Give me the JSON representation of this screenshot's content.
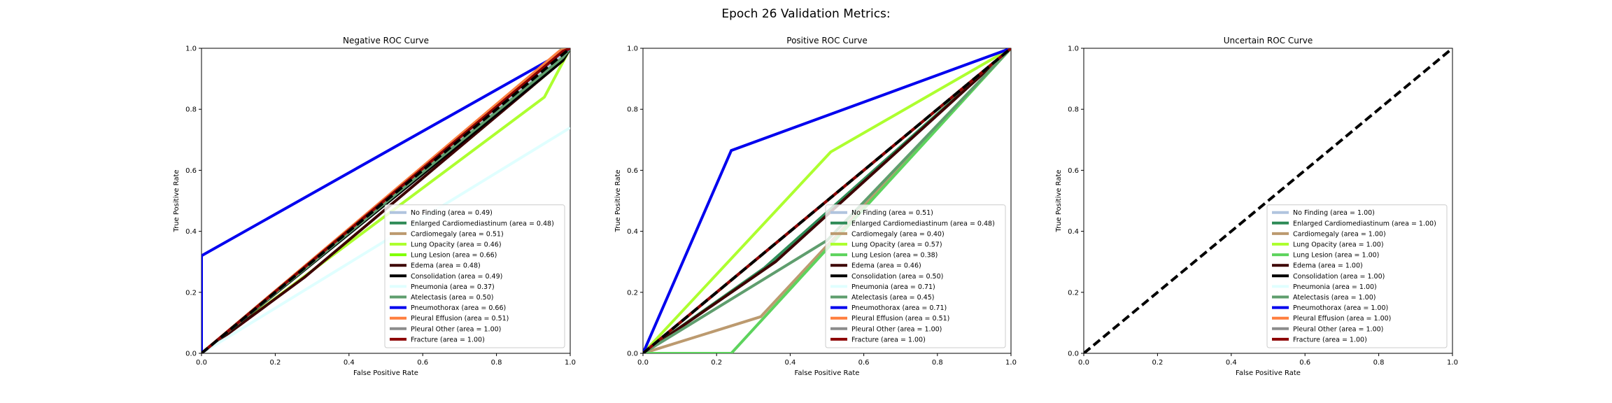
{
  "figure_title": "Epoch 26 Validation Metrics:",
  "chart_data": [
    {
      "type": "line",
      "title": "Negative ROC Curve",
      "xlabel": "False Positive Rate",
      "ylabel": "True Positive Rate",
      "xlim": [
        0,
        1
      ],
      "ylim": [
        0,
        1
      ],
      "xticks": [
        "0.0",
        "0.2",
        "0.4",
        "0.6",
        "0.8",
        "1.0"
      ],
      "yticks": [
        "0.0",
        "0.2",
        "0.4",
        "0.6",
        "0.8",
        "1.0"
      ],
      "grid": false,
      "legend": "bottom-right",
      "diagonal": {
        "x": [
          0,
          1
        ],
        "y": [
          0,
          1
        ],
        "style": "dashed",
        "color": "#000000"
      },
      "series": [
        {
          "name": "No Finding (area = 0.49)",
          "color": "#b0c4de",
          "x": [
            0,
            0.97,
            1
          ],
          "y": [
            0,
            0.97,
            1
          ]
        },
        {
          "name": "Enlarged Cardiomediastinum (area = 0.48)",
          "color": "#2e8b57",
          "x": [
            0,
            0.98,
            1
          ],
          "y": [
            0,
            0.96,
            1
          ]
        },
        {
          "name": "Cardiomegaly (area = 0.51)",
          "color": "#bc9a6f",
          "x": [
            0,
            0.98,
            1
          ],
          "y": [
            0,
            1.0,
            1
          ]
        },
        {
          "name": "Lung Opacity (area = 0.46)",
          "color": "#adff2f",
          "x": [
            0,
            0.93,
            1
          ],
          "y": [
            0,
            0.84,
            1
          ]
        },
        {
          "name": "Lung Lesion (area = 0.66)",
          "color": "#7fff00",
          "x": [
            0,
            0.98,
            1
          ],
          "y": [
            0,
            0.97,
            1
          ]
        },
        {
          "name": "Edema (area = 0.48)",
          "color": "#3d0000",
          "x": [
            0,
            0.28,
            0.98,
            1
          ],
          "y": [
            0,
            0.25,
            0.96,
            1
          ]
        },
        {
          "name": "Consolidation (area = 0.49)",
          "color": "#000000",
          "x": [
            0,
            0.98,
            1
          ],
          "y": [
            0,
            0.96,
            1
          ]
        },
        {
          "name": "Pneumonia (area = 0.37)",
          "color": "#e0ffff",
          "x": [
            0,
            1
          ],
          "y": [
            0,
            0.74
          ]
        },
        {
          "name": "Atelectasis (area = 0.50)",
          "color": "#5f9e6e",
          "x": [
            0,
            0.98,
            1
          ],
          "y": [
            0,
            0.97,
            1
          ]
        },
        {
          "name": "Pneumothorax (area = 0.66)",
          "color": "#0000ee",
          "x": [
            0,
            0,
            1
          ],
          "y": [
            0,
            0.32,
            1
          ]
        },
        {
          "name": "Pleural Effusion (area = 0.51)",
          "color": "#ff7f3f",
          "x": [
            0,
            0.97,
            1
          ],
          "y": [
            0,
            0.99,
            1
          ]
        },
        {
          "name": "Pleural Other (area = 1.00)",
          "color": "#8c8c8c",
          "x": [
            0,
            0.98,
            1
          ],
          "y": [
            0,
            0.99,
            1
          ]
        },
        {
          "name": "Fracture (area = 1.00)",
          "color": "#8b0000",
          "x": [
            0,
            0.98,
            1
          ],
          "y": [
            0,
            0.99,
            1
          ]
        }
      ]
    },
    {
      "type": "line",
      "title": "Positive ROC Curve",
      "xlabel": "False Positive Rate",
      "ylabel": "True Positive Rate",
      "xlim": [
        0,
        1
      ],
      "ylim": [
        0,
        1
      ],
      "xticks": [
        "0.0",
        "0.2",
        "0.4",
        "0.6",
        "0.8",
        "1.0"
      ],
      "yticks": [
        "0.0",
        "0.2",
        "0.4",
        "0.6",
        "0.8",
        "1.0"
      ],
      "grid": false,
      "legend": "bottom-right",
      "diagonal": {
        "x": [
          0,
          1
        ],
        "y": [
          0,
          1
        ],
        "style": "dashed",
        "color": "#000000"
      },
      "series": [
        {
          "name": "No Finding (area = 0.51)",
          "color": "#b0c4de",
          "x": [
            0,
            1
          ],
          "y": [
            0,
            1
          ]
        },
        {
          "name": "Enlarged Cardiomediastinum (area = 0.48)",
          "color": "#2e8b57",
          "x": [
            0,
            0.33,
            1
          ],
          "y": [
            0,
            0.28,
            1
          ]
        },
        {
          "name": "Cardiomegaly (area = 0.40)",
          "color": "#bc9a6f",
          "x": [
            0,
            0.32,
            1
          ],
          "y": [
            0,
            0.12,
            1
          ]
        },
        {
          "name": "Lung Opacity (area = 0.57)",
          "color": "#adff2f",
          "x": [
            0,
            0.51,
            1
          ],
          "y": [
            0,
            0.66,
            1
          ]
        },
        {
          "name": "Lung Lesion (area = 0.38)",
          "color": "#5dd35d",
          "x": [
            0,
            0.24,
            1
          ],
          "y": [
            0,
            0,
            1
          ]
        },
        {
          "name": "Edema (area = 0.46)",
          "color": "#3d0000",
          "x": [
            0,
            0.36,
            1
          ],
          "y": [
            0,
            0.3,
            1
          ]
        },
        {
          "name": "Consolidation (area = 0.50)",
          "color": "#000000",
          "x": [
            0,
            1
          ],
          "y": [
            0,
            1
          ]
        },
        {
          "name": "Pneumonia (area = 0.71)",
          "color": "#e0ffff",
          "x": [
            0,
            1
          ],
          "y": [
            0,
            1
          ]
        },
        {
          "name": "Atelectasis (area = 0.45)",
          "color": "#5f9e6e",
          "x": [
            0,
            0.5,
            1
          ],
          "y": [
            0,
            0.37,
            1
          ]
        },
        {
          "name": "Pneumothorax (area = 0.71)",
          "color": "#0000ee",
          "x": [
            0,
            0.24,
            1
          ],
          "y": [
            0,
            0.665,
            1
          ]
        },
        {
          "name": "Pleural Effusion (area = 0.51)",
          "color": "#ff7f3f",
          "x": [
            0,
            1
          ],
          "y": [
            0,
            1
          ]
        },
        {
          "name": "Pleural Other (area = 1.00)",
          "color": "#8c8c8c",
          "x": [
            0,
            1
          ],
          "y": [
            0,
            1
          ]
        },
        {
          "name": "Fracture (area = 1.00)",
          "color": "#8b0000",
          "x": [
            0,
            1
          ],
          "y": [
            0,
            1
          ]
        }
      ]
    },
    {
      "type": "line",
      "title": "Uncertain ROC Curve",
      "xlabel": "False Positive Rate",
      "ylabel": "True Positive Rate",
      "xlim": [
        0,
        1
      ],
      "ylim": [
        0,
        1
      ],
      "xticks": [
        "0.0",
        "0.2",
        "0.4",
        "0.6",
        "0.8",
        "1.0"
      ],
      "yticks": [
        "0.0",
        "0.2",
        "0.4",
        "0.6",
        "0.8",
        "1.0"
      ],
      "grid": false,
      "legend": "bottom-right",
      "diagonal": {
        "x": [
          0,
          1
        ],
        "y": [
          0,
          1
        ],
        "style": "dashed",
        "color": "#000000"
      },
      "series": [
        {
          "name": "No Finding (area = 1.00)",
          "color": "#b0c4de",
          "x": [],
          "y": []
        },
        {
          "name": "Enlarged Cardiomediastinum (area = 1.00)",
          "color": "#2e8b57",
          "x": [],
          "y": []
        },
        {
          "name": "Cardiomegaly (area = 1.00)",
          "color": "#bc9a6f",
          "x": [],
          "y": []
        },
        {
          "name": "Lung Opacity (area = 1.00)",
          "color": "#adff2f",
          "x": [],
          "y": []
        },
        {
          "name": "Lung Lesion (area = 1.00)",
          "color": "#5dd35d",
          "x": [],
          "y": []
        },
        {
          "name": "Edema (area = 1.00)",
          "color": "#3d0000",
          "x": [],
          "y": []
        },
        {
          "name": "Consolidation (area = 1.00)",
          "color": "#000000",
          "x": [],
          "y": []
        },
        {
          "name": "Pneumonia (area = 1.00)",
          "color": "#e0ffff",
          "x": [],
          "y": []
        },
        {
          "name": "Atelectasis (area = 1.00)",
          "color": "#5f9e6e",
          "x": [],
          "y": []
        },
        {
          "name": "Pneumothorax (area = 1.00)",
          "color": "#0000ee",
          "x": [],
          "y": []
        },
        {
          "name": "Pleural Effusion (area = 1.00)",
          "color": "#ff7f3f",
          "x": [],
          "y": []
        },
        {
          "name": "Pleural Other (area = 1.00)",
          "color": "#8c8c8c",
          "x": [],
          "y": []
        },
        {
          "name": "Fracture (area = 1.00)",
          "color": "#8b0000",
          "x": [],
          "y": []
        }
      ]
    }
  ]
}
